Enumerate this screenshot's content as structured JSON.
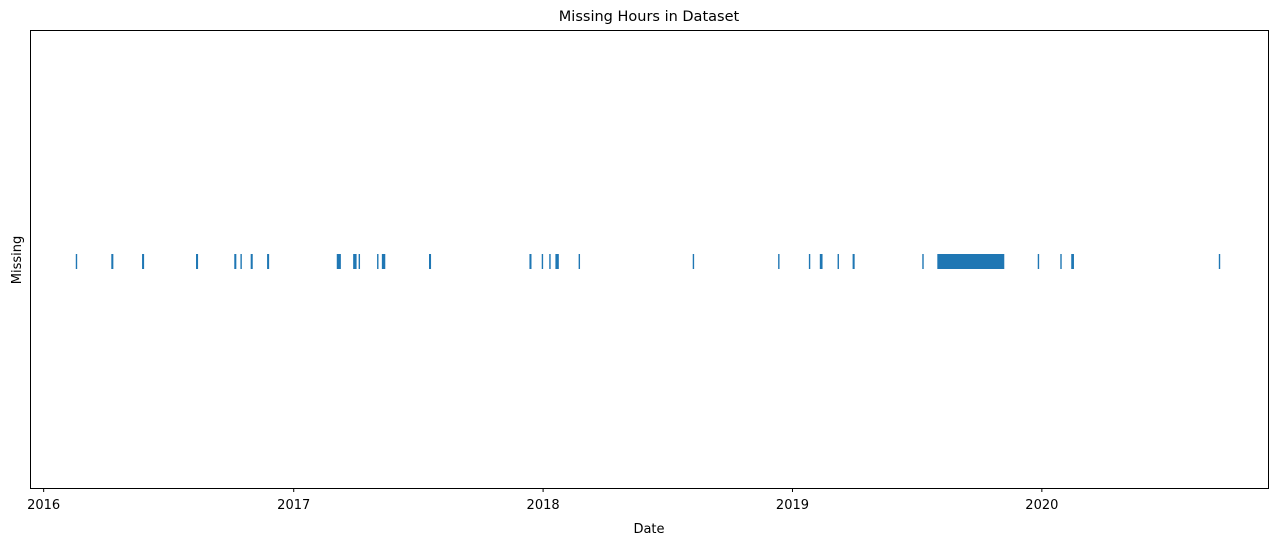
{
  "chart_data": {
    "type": "event-timeline",
    "title": "Missing Hours in Dataset",
    "xlabel": "Date",
    "ylabel": "Missing",
    "xlim": [
      "2015-12-12",
      "2020-11-27"
    ],
    "x_ticks": [
      "2016-01-01",
      "2017-01-01",
      "2018-01-01",
      "2019-01-01",
      "2020-01-01"
    ],
    "x_tick_labels": [
      "2016",
      "2017",
      "2018",
      "2019",
      "2020"
    ],
    "y_ticks_visible": false,
    "grid": false,
    "legend": "none",
    "bar_color": "#1f77b4",
    "missing_periods": [
      {
        "start": "2016-02-17",
        "end": "2016-02-19"
      },
      {
        "start": "2016-04-09",
        "end": "2016-04-12"
      },
      {
        "start": "2016-05-24",
        "end": "2016-05-27"
      },
      {
        "start": "2016-08-11",
        "end": "2016-08-14"
      },
      {
        "start": "2016-10-06",
        "end": "2016-10-09"
      },
      {
        "start": "2016-10-15",
        "end": "2016-10-17"
      },
      {
        "start": "2016-10-30",
        "end": "2016-11-02"
      },
      {
        "start": "2016-11-23",
        "end": "2016-11-26"
      },
      {
        "start": "2017-03-05",
        "end": "2017-03-11"
      },
      {
        "start": "2017-03-29",
        "end": "2017-04-03"
      },
      {
        "start": "2017-04-06",
        "end": "2017-04-08"
      },
      {
        "start": "2017-05-03",
        "end": "2017-05-05"
      },
      {
        "start": "2017-05-10",
        "end": "2017-05-15"
      },
      {
        "start": "2017-07-18",
        "end": "2017-07-21"
      },
      {
        "start": "2017-12-12",
        "end": "2017-12-15"
      },
      {
        "start": "2017-12-30",
        "end": "2018-01-01"
      },
      {
        "start": "2018-01-10",
        "end": "2018-01-12"
      },
      {
        "start": "2018-01-19",
        "end": "2018-01-24"
      },
      {
        "start": "2018-02-22",
        "end": "2018-02-24"
      },
      {
        "start": "2018-08-08",
        "end": "2018-08-10"
      },
      {
        "start": "2018-12-11",
        "end": "2018-12-13"
      },
      {
        "start": "2019-01-25",
        "end": "2019-01-27"
      },
      {
        "start": "2019-02-10",
        "end": "2019-02-14"
      },
      {
        "start": "2019-03-08",
        "end": "2019-03-10"
      },
      {
        "start": "2019-03-30",
        "end": "2019-04-02"
      },
      {
        "start": "2019-07-10",
        "end": "2019-07-12"
      },
      {
        "start": "2019-08-01",
        "end": "2019-11-07"
      },
      {
        "start": "2019-12-26",
        "end": "2019-12-28"
      },
      {
        "start": "2020-01-28",
        "end": "2020-01-30"
      },
      {
        "start": "2020-02-13",
        "end": "2020-02-17"
      },
      {
        "start": "2020-09-16",
        "end": "2020-09-18"
      }
    ]
  }
}
